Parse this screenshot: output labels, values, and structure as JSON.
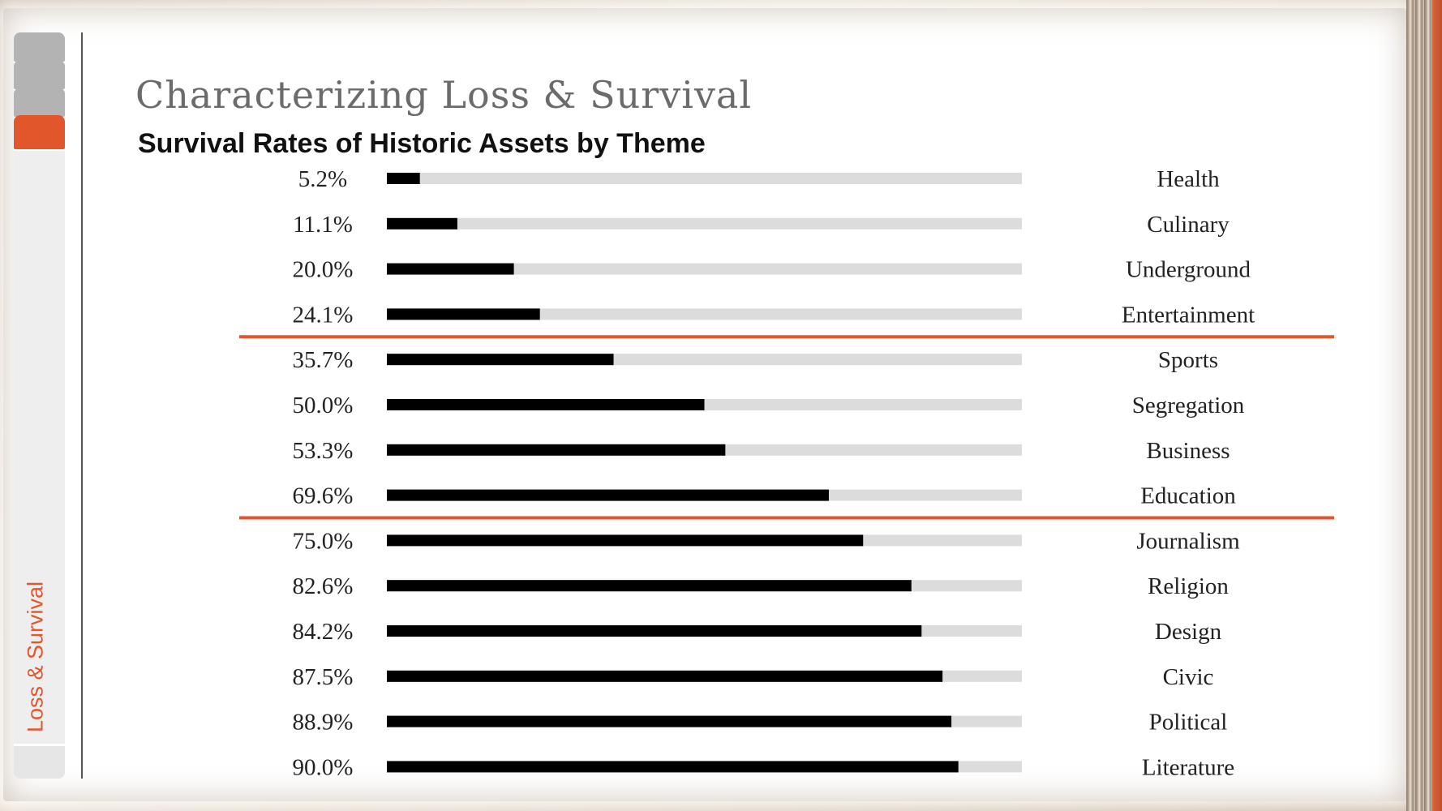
{
  "header": {
    "title": "Characterizing Loss & Survival"
  },
  "sidebar": {
    "section_label": "Loss & Survival",
    "tabs": [
      "tab",
      "tab",
      "tab",
      "tab-active"
    ]
  },
  "colors": {
    "accent": "#e2562c",
    "bar_fill": "#000000",
    "bar_track": "#dcdcdc",
    "title_gray": "#6b6b6b"
  },
  "chart_data": {
    "type": "bar",
    "orientation": "horizontal",
    "title": "Survival Rates of Historic Assets by Theme",
    "xlabel": "",
    "ylabel": "",
    "xlim": [
      0,
      100
    ],
    "value_suffix": "%",
    "categories": [
      "Health",
      "Culinary",
      "Underground",
      "Entertainment",
      "Sports",
      "Segregation",
      "Business",
      "Education",
      "Journalism",
      "Religion",
      "Design",
      "Civic",
      "Political",
      "Literature"
    ],
    "value_labels": [
      "5.2%",
      "11.1%",
      "20.0%",
      "24.1%",
      "35.7%",
      "50.0%",
      "53.3%",
      "69.6%",
      "75.0%",
      "82.6%",
      "84.2%",
      "87.5%",
      "88.9%",
      "90.0%"
    ],
    "values": [
      5.2,
      11.1,
      20.0,
      24.1,
      35.7,
      50.0,
      53.3,
      69.6,
      75.0,
      82.6,
      84.2,
      87.5,
      88.9,
      90.0
    ],
    "group_separators_after": [
      "Entertainment",
      "Education"
    ],
    "grid": false,
    "legend": "none"
  }
}
